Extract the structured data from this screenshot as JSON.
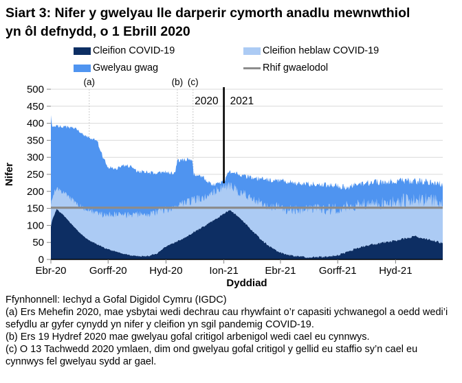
{
  "title": "Siart 3: Nifer y gwelyau lle darperir cymorth anadlu mewnwthiol yn ôl defnydd, o 1 Ebrill 2020",
  "legend": {
    "items": [
      {
        "label": "Cleifion COVID-19",
        "color": "#0D2E63",
        "kind": "box"
      },
      {
        "label": "Cleifion heblaw COVID-19",
        "color": "#ACCBF4",
        "kind": "box"
      },
      {
        "label": "Gwelyau gwag",
        "color": "#4F94F0",
        "kind": "box"
      },
      {
        "label": "Rhif gwaelodol",
        "color": "#8C8C8C",
        "kind": "line"
      }
    ]
  },
  "footer": {
    "source": "Ffynhonnell: Iechyd a Gofal Digidol Cymru (IGDC)",
    "notes": [
      "(a) Ers Mehefin 2020, mae ysbytai wedi dechrau cau rhywfaint o’r capasiti ychwanegol a oedd wedi’i sefydlu ar gyfer cynydd yn nifer y cleifion yn sgil pandemig COVID-19.",
      "(b) Ers 19 Hydref 2020 mae gwelyau gofal critigol arbenigol wedi cael eu cynnwys.",
      "(c) O 13 Tachwedd 2020 ymlaen, dim ond gwelyau gofal critigol y gellid eu staffio sy’n cael eu cynnwys fel gwelyau sydd ar gael."
    ]
  },
  "chart_data": {
    "type": "area",
    "stacked": true,
    "title": "Siart 3: Nifer y gwelyau lle darperir cymorth anadlu mewnwthiol yn ôl defnydd, o 1 Ebrill 2020",
    "xlabel": "Dyddiad",
    "ylabel": "Nifer",
    "ylim": [
      0,
      500
    ],
    "yticks": [
      0,
      50,
      100,
      150,
      200,
      250,
      300,
      350,
      400,
      450,
      500
    ],
    "x_range": [
      "2020-04-01",
      "2021-12-15"
    ],
    "xticks": [
      {
        "date": "2020-04-01",
        "label": "Ebr-20"
      },
      {
        "date": "2020-07-01",
        "label": "Gorff-20"
      },
      {
        "date": "2020-10-01",
        "label": "Hyd-20"
      },
      {
        "date": "2021-01-01",
        "label": "Ion-21"
      },
      {
        "date": "2021-04-01",
        "label": "Ebr-21"
      },
      {
        "date": "2021-07-01",
        "label": "Gorff-21"
      },
      {
        "date": "2021-10-01",
        "label": "Hyd-21"
      }
    ],
    "grid": true,
    "legend_position": "top",
    "baseline": {
      "label": "Rhif gwaelodol",
      "value": 152,
      "color": "#8C8C8C"
    },
    "annotations": [
      {
        "key": "(a)",
        "date": "2020-06-01"
      },
      {
        "key": "(b)",
        "date": "2020-10-19"
      },
      {
        "key": "(c)",
        "date": "2020-11-13"
      }
    ],
    "year_divider": {
      "date": "2021-01-01",
      "left_label": "2020",
      "right_label": "2021"
    },
    "series_names": [
      "Cleifion COVID-19",
      "Cleifion heblaw COVID-19",
      "Gwelyau gwag"
    ],
    "series_colors": [
      "#0D2E63",
      "#ACCBF4",
      "#4F94F0"
    ],
    "keypoint_columns": [
      "date",
      "cleifion_covid",
      "cyfanswm_cleifion_stack",
      "cyfanswm_gwelyau_stack"
    ],
    "keypoints": [
      [
        "2020-04-01",
        98,
        165,
        420
      ],
      [
        "2020-04-03",
        115,
        180,
        392
      ],
      [
        "2020-04-10",
        148,
        212,
        392
      ],
      [
        "2020-04-20",
        132,
        196,
        390
      ],
      [
        "2020-05-01",
        110,
        180,
        388
      ],
      [
        "2020-05-15",
        82,
        158,
        380
      ],
      [
        "2020-05-25",
        65,
        148,
        362
      ],
      [
        "2020-06-01",
        56,
        142,
        356
      ],
      [
        "2020-06-14",
        44,
        136,
        348
      ],
      [
        "2020-06-18",
        40,
        134,
        322
      ],
      [
        "2020-06-24",
        35,
        132,
        296
      ],
      [
        "2020-07-01",
        30,
        133,
        270
      ],
      [
        "2020-07-15",
        22,
        132,
        268
      ],
      [
        "2020-07-25",
        17,
        130,
        276
      ],
      [
        "2020-08-05",
        13,
        130,
        274
      ],
      [
        "2020-08-15",
        10,
        131,
        260
      ],
      [
        "2020-09-01",
        10,
        134,
        256
      ],
      [
        "2020-09-15",
        16,
        138,
        252
      ],
      [
        "2020-10-01",
        38,
        146,
        256
      ],
      [
        "2020-10-15",
        50,
        155,
        254
      ],
      [
        "2020-10-19",
        53,
        158,
        290
      ],
      [
        "2020-11-01",
        65,
        166,
        294
      ],
      [
        "2020-11-12",
        78,
        172,
        290
      ],
      [
        "2020-11-14",
        80,
        174,
        252
      ],
      [
        "2020-12-01",
        98,
        184,
        240
      ],
      [
        "2020-12-13",
        112,
        194,
        216
      ],
      [
        "2020-12-22",
        122,
        202,
        224
      ],
      [
        "2021-01-01",
        135,
        212,
        232
      ],
      [
        "2021-01-10",
        145,
        216,
        256
      ],
      [
        "2021-01-20",
        132,
        205,
        252
      ],
      [
        "2021-02-01",
        112,
        192,
        246
      ],
      [
        "2021-02-15",
        85,
        178,
        240
      ],
      [
        "2021-03-01",
        58,
        166,
        236
      ],
      [
        "2021-03-15",
        38,
        158,
        233
      ],
      [
        "2021-04-01",
        20,
        151,
        230
      ],
      [
        "2021-04-15",
        13,
        148,
        228
      ],
      [
        "2021-05-01",
        9,
        146,
        224
      ],
      [
        "2021-05-15",
        7,
        145,
        222
      ],
      [
        "2021-06-01",
        7,
        147,
        222
      ],
      [
        "2021-06-15",
        8,
        149,
        219
      ],
      [
        "2021-07-01",
        12,
        151,
        215
      ],
      [
        "2021-07-15",
        22,
        154,
        212
      ],
      [
        "2021-08-01",
        33,
        158,
        220
      ],
      [
        "2021-08-15",
        41,
        161,
        224
      ],
      [
        "2021-09-01",
        46,
        164,
        227
      ],
      [
        "2021-09-15",
        51,
        167,
        229
      ],
      [
        "2021-10-01",
        56,
        170,
        231
      ],
      [
        "2021-10-15",
        61,
        173,
        230
      ],
      [
        "2021-11-01",
        68,
        177,
        231
      ],
      [
        "2021-11-15",
        63,
        174,
        228
      ],
      [
        "2021-12-01",
        56,
        170,
        226
      ],
      [
        "2021-12-15",
        48,
        166,
        223
      ]
    ]
  }
}
